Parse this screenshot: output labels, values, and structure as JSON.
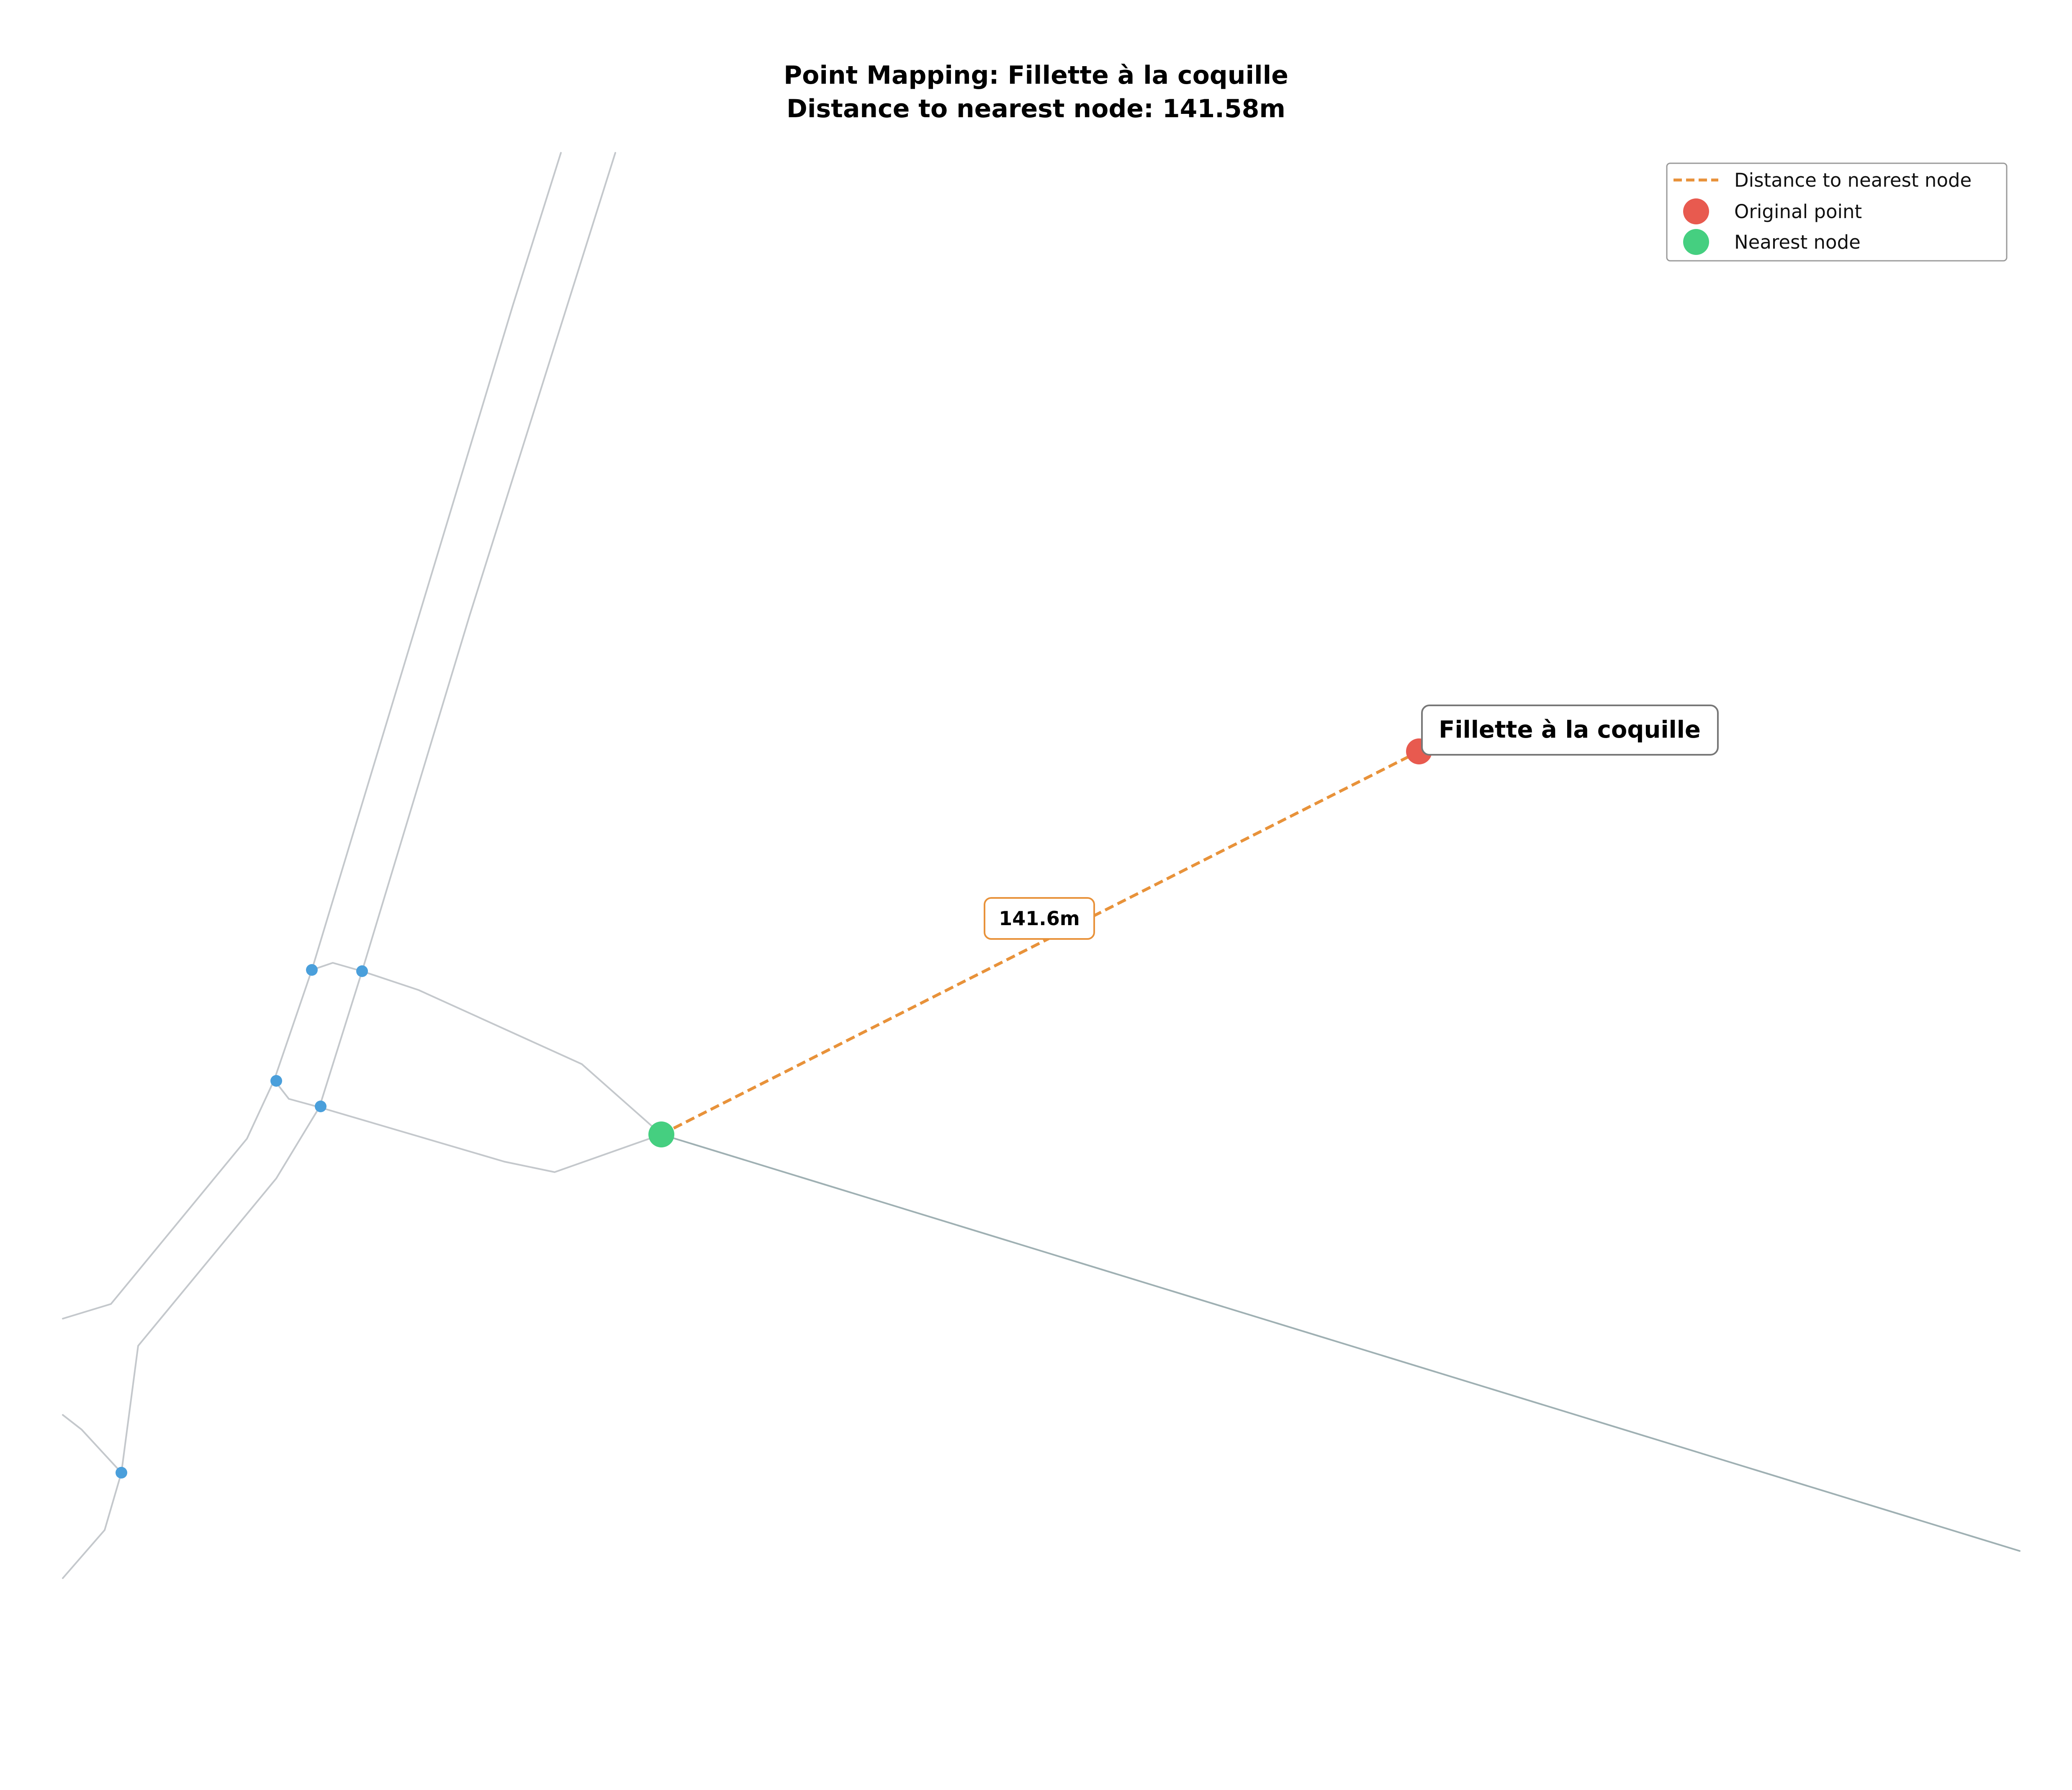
{
  "figure": {
    "title_line1": "Point Mapping: Fillette à la coquille",
    "title_line2": "Distance to nearest node: 141.58m"
  },
  "map": {
    "point_name": "Fillette à la coquille",
    "distance_label": "141.6m",
    "distance_m": 141.58
  },
  "legend": {
    "entries": [
      {
        "label": "Distance to nearest node",
        "symbol": "dashed-line",
        "color": "#e8923a"
      },
      {
        "label": "Original point",
        "symbol": "dot",
        "color": "#e85a4f"
      },
      {
        "label": "Nearest node",
        "symbol": "dot",
        "color": "#45cf80"
      }
    ]
  },
  "colors": {
    "road": "#c4c8cc",
    "main_road": "#9fb0b3",
    "graph_node": "#4a9fdb",
    "original_point": "#e85a4f",
    "nearest_node": "#45cf80",
    "distance_line": "#e8923a"
  }
}
